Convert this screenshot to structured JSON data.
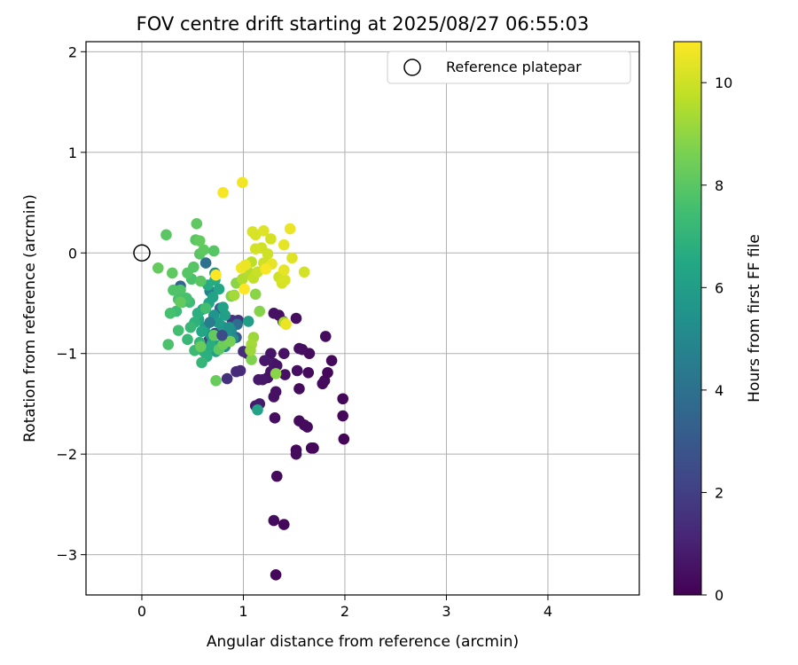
{
  "chart_data": {
    "type": "scatter",
    "title": "FOV centre drift starting at 2025/08/27 06:55:03",
    "xlabel": "Angular distance from reference (arcmin)",
    "ylabel": "Rotation from reference (arcmin)",
    "xlim": [
      -0.55,
      4.9
    ],
    "ylim": [
      -3.4,
      2.1
    ],
    "xticks": [
      0,
      1,
      2,
      3,
      4
    ],
    "yticks": [
      -3,
      -2,
      -1,
      0,
      1,
      2
    ],
    "grid": true,
    "legend": {
      "position": "top-right",
      "entries": [
        "Reference platepar"
      ]
    },
    "colorbar": {
      "label": "Hours from first FF file",
      "range": [
        0,
        10.8
      ],
      "ticks": [
        0,
        2,
        4,
        6,
        8,
        10
      ],
      "colormap": "viridis"
    },
    "reference_point": {
      "x": 0,
      "y": 0
    },
    "series": [
      {
        "points": [
          {
            "x": 1.32,
            "y": -3.2,
            "c": 0.2
          },
          {
            "x": 1.3,
            "y": -2.66,
            "c": 0.3
          },
          {
            "x": 1.4,
            "y": -2.7,
            "c": 0.2
          },
          {
            "x": 1.33,
            "y": -2.22,
            "c": 0.3
          },
          {
            "x": 1.52,
            "y": -1.96,
            "c": 0.2
          },
          {
            "x": 1.52,
            "y": -2.0,
            "c": 0.3
          },
          {
            "x": 1.67,
            "y": -1.94,
            "c": 0.2
          },
          {
            "x": 1.69,
            "y": -1.94,
            "c": 0.2
          },
          {
            "x": 1.99,
            "y": -1.85,
            "c": 0.1
          },
          {
            "x": 1.98,
            "y": -1.62,
            "c": 0.2
          },
          {
            "x": 1.98,
            "y": -1.45,
            "c": 0.2
          },
          {
            "x": 1.6,
            "y": -1.71,
            "c": 0.3
          },
          {
            "x": 1.63,
            "y": -1.73,
            "c": 0.3
          },
          {
            "x": 1.55,
            "y": -1.67,
            "c": 0.3
          },
          {
            "x": 1.31,
            "y": -1.64,
            "c": 0.4
          },
          {
            "x": 1.32,
            "y": -1.38,
            "c": 0.5
          },
          {
            "x": 1.3,
            "y": -1.43,
            "c": 0.5
          },
          {
            "x": 1.55,
            "y": -1.35,
            "c": 0.3
          },
          {
            "x": 1.78,
            "y": -1.3,
            "c": 0.3
          },
          {
            "x": 1.8,
            "y": -1.27,
            "c": 0.3
          },
          {
            "x": 1.83,
            "y": -1.19,
            "c": 0.2
          },
          {
            "x": 1.87,
            "y": -1.07,
            "c": 0.2
          },
          {
            "x": 1.81,
            "y": -0.83,
            "c": 0.3
          },
          {
            "x": 1.65,
            "y": -1.0,
            "c": 0.3
          },
          {
            "x": 1.58,
            "y": -0.96,
            "c": 0.4
          },
          {
            "x": 1.55,
            "y": -0.95,
            "c": 0.4
          },
          {
            "x": 1.64,
            "y": -1.19,
            "c": 0.3
          },
          {
            "x": 1.53,
            "y": -1.17,
            "c": 0.4
          },
          {
            "x": 1.41,
            "y": -1.21,
            "c": 0.5
          },
          {
            "x": 1.4,
            "y": -1.0,
            "c": 0.5
          },
          {
            "x": 1.27,
            "y": -1.0,
            "c": 0.6
          },
          {
            "x": 1.27,
            "y": -1.18,
            "c": 0.6
          },
          {
            "x": 1.24,
            "y": -1.24,
            "c": 0.6
          },
          {
            "x": 1.15,
            "y": -1.26,
            "c": 0.7
          },
          {
            "x": 1.19,
            "y": -1.26,
            "c": 0.7
          },
          {
            "x": 1.21,
            "y": -1.07,
            "c": 0.7
          },
          {
            "x": 1.3,
            "y": -1.1,
            "c": 0.7
          },
          {
            "x": 1.33,
            "y": -1.12,
            "c": 0.6
          },
          {
            "x": 1.12,
            "y": -1.52,
            "c": 0.8
          },
          {
            "x": 1.16,
            "y": -1.5,
            "c": 0.8
          },
          {
            "x": 1.04,
            "y": -1.0,
            "c": 0.9
          },
          {
            "x": 1.52,
            "y": -0.65,
            "c": 0.4
          },
          {
            "x": 1.3,
            "y": -0.6,
            "c": 0.5
          },
          {
            "x": 1.35,
            "y": -0.62,
            "c": 0.5
          },
          {
            "x": 1.39,
            "y": -0.68,
            "c": 0.6
          },
          {
            "x": 0.93,
            "y": -1.18,
            "c": 1.3
          },
          {
            "x": 0.97,
            "y": -1.17,
            "c": 1.3
          },
          {
            "x": 1.0,
            "y": -0.98,
            "c": 1.4
          },
          {
            "x": 0.84,
            "y": -1.25,
            "c": 1.5
          },
          {
            "x": 0.95,
            "y": -0.67,
            "c": 1.6
          },
          {
            "x": 0.89,
            "y": -0.67,
            "c": 1.7
          },
          {
            "x": 0.66,
            "y": -0.87,
            "c": 2.0
          },
          {
            "x": 0.72,
            "y": -0.8,
            "c": 2.0
          },
          {
            "x": 0.84,
            "y": -0.86,
            "c": 2.2
          },
          {
            "x": 0.38,
            "y": -0.33,
            "c": 3.5
          },
          {
            "x": 0.93,
            "y": -0.84,
            "c": 3.0
          },
          {
            "x": 0.77,
            "y": -0.55,
            "c": 3.5
          },
          {
            "x": 0.63,
            "y": -0.1,
            "c": 4.0
          },
          {
            "x": 0.94,
            "y": -0.71,
            "c": 3.8
          },
          {
            "x": 0.86,
            "y": -0.78,
            "c": 4.2
          },
          {
            "x": 0.67,
            "y": -0.38,
            "c": 4.8
          },
          {
            "x": 0.72,
            "y": -0.2,
            "c": 5.3
          },
          {
            "x": 0.88,
            "y": -0.77,
            "c": 5.0
          },
          {
            "x": 0.9,
            "y": -0.85,
            "c": 5.1
          },
          {
            "x": 0.82,
            "y": -0.93,
            "c": 5.3
          },
          {
            "x": 0.71,
            "y": -0.62,
            "c": 5.6
          },
          {
            "x": 0.68,
            "y": -0.82,
            "c": 5.7
          },
          {
            "x": 0.62,
            "y": -0.74,
            "c": 6.0
          },
          {
            "x": 0.75,
            "y": -0.69,
            "c": 5.9
          },
          {
            "x": 0.79,
            "y": -0.73,
            "c": 5.8
          },
          {
            "x": 0.84,
            "y": -0.81,
            "c": 5.5
          },
          {
            "x": 0.86,
            "y": -0.74,
            "c": 5.4
          },
          {
            "x": 0.76,
            "y": -0.92,
            "c": 5.9
          },
          {
            "x": 0.73,
            "y": -0.98,
            "c": 6.1
          },
          {
            "x": 0.69,
            "y": -0.9,
            "c": 6.3
          },
          {
            "x": 0.59,
            "y": -0.78,
            "c": 6.4
          },
          {
            "x": 0.56,
            "y": -0.66,
            "c": 6.5
          },
          {
            "x": 0.6,
            "y": -0.56,
            "c": 6.5
          },
          {
            "x": 0.66,
            "y": -0.5,
            "c": 6.4
          },
          {
            "x": 0.7,
            "y": -0.44,
            "c": 6.2
          },
          {
            "x": 0.65,
            "y": -0.32,
            "c": 6.6
          },
          {
            "x": 0.72,
            "y": -0.27,
            "c": 6.6
          },
          {
            "x": 0.76,
            "y": -0.36,
            "c": 6.4
          },
          {
            "x": 0.8,
            "y": -0.54,
            "c": 6.2
          },
          {
            "x": 0.82,
            "y": -0.62,
            "c": 6.1
          },
          {
            "x": 1.14,
            "y": -1.56,
            "c": 6.2
          },
          {
            "x": 1.05,
            "y": -0.68,
            "c": 6.0
          },
          {
            "x": 0.55,
            "y": -0.6,
            "c": 6.8
          },
          {
            "x": 0.52,
            "y": -0.69,
            "c": 6.9
          },
          {
            "x": 0.57,
            "y": -0.89,
            "c": 7.0
          },
          {
            "x": 0.61,
            "y": -0.98,
            "c": 6.9
          },
          {
            "x": 0.64,
            "y": -1.03,
            "c": 6.8
          },
          {
            "x": 0.68,
            "y": -0.93,
            "c": 6.7
          },
          {
            "x": 0.48,
            "y": -0.74,
            "c": 7.2
          },
          {
            "x": 0.45,
            "y": -0.86,
            "c": 7.2
          },
          {
            "x": 0.52,
            "y": -0.97,
            "c": 7.3
          },
          {
            "x": 0.59,
            "y": -1.09,
            "c": 7.1
          },
          {
            "x": 0.36,
            "y": -0.77,
            "c": 7.5
          },
          {
            "x": 0.34,
            "y": -0.58,
            "c": 7.4
          },
          {
            "x": 0.28,
            "y": -0.6,
            "c": 7.6
          },
          {
            "x": 0.26,
            "y": -0.91,
            "c": 7.7
          },
          {
            "x": 0.4,
            "y": -0.49,
            "c": 7.6
          },
          {
            "x": 0.47,
            "y": -0.49,
            "c": 7.4
          },
          {
            "x": 0.44,
            "y": -0.45,
            "c": 7.6
          },
          {
            "x": 0.38,
            "y": -0.37,
            "c": 7.8
          },
          {
            "x": 0.31,
            "y": -0.37,
            "c": 7.8
          },
          {
            "x": 0.36,
            "y": -0.46,
            "c": 7.7
          },
          {
            "x": 0.49,
            "y": -0.26,
            "c": 7.7
          },
          {
            "x": 0.45,
            "y": -0.2,
            "c": 7.9
          },
          {
            "x": 0.51,
            "y": -0.14,
            "c": 7.9
          },
          {
            "x": 0.57,
            "y": -0.01,
            "c": 8.0
          },
          {
            "x": 0.58,
            "y": -0.28,
            "c": 8.0
          },
          {
            "x": 0.61,
            "y": 0.03,
            "c": 8.1
          },
          {
            "x": 0.71,
            "y": 0.02,
            "c": 7.9
          },
          {
            "x": 0.53,
            "y": 0.13,
            "c": 8.0
          },
          {
            "x": 0.54,
            "y": 0.29,
            "c": 8.1
          },
          {
            "x": 0.57,
            "y": 0.12,
            "c": 8.2
          },
          {
            "x": 0.24,
            "y": 0.18,
            "c": 8.0
          },
          {
            "x": 0.16,
            "y": -0.15,
            "c": 8.2
          },
          {
            "x": 0.3,
            "y": -0.2,
            "c": 8.1
          },
          {
            "x": 0.38,
            "y": -0.49,
            "c": 8.2
          },
          {
            "x": 0.58,
            "y": -0.93,
            "c": 8.3
          },
          {
            "x": 0.71,
            "y": -0.82,
            "c": 8.2
          },
          {
            "x": 0.73,
            "y": -1.27,
            "c": 8.3
          },
          {
            "x": 0.76,
            "y": -0.96,
            "c": 8.1
          },
          {
            "x": 0.8,
            "y": -0.91,
            "c": 8.4
          },
          {
            "x": 0.87,
            "y": -0.88,
            "c": 8.5
          },
          {
            "x": 0.88,
            "y": -0.43,
            "c": 8.7
          },
          {
            "x": 0.93,
            "y": -0.3,
            "c": 8.9
          },
          {
            "x": 1.12,
            "y": -0.41,
            "c": 8.9
          },
          {
            "x": 1.16,
            "y": -0.58,
            "c": 8.8
          },
          {
            "x": 1.32,
            "y": -1.2,
            "c": 8.9
          },
          {
            "x": 1.08,
            "y": -1.06,
            "c": 8.7
          },
          {
            "x": 1.1,
            "y": -0.84,
            "c": 9.2
          },
          {
            "x": 1.08,
            "y": -0.91,
            "c": 9.3
          },
          {
            "x": 1.4,
            "y": -0.69,
            "c": 9.4
          },
          {
            "x": 1.07,
            "y": -0.97,
            "c": 9.2
          },
          {
            "x": 0.91,
            "y": -0.42,
            "c": 9.3
          },
          {
            "x": 0.99,
            "y": -0.26,
            "c": 9.5
          },
          {
            "x": 1.06,
            "y": -0.2,
            "c": 9.6
          },
          {
            "x": 1.08,
            "y": -0.09,
            "c": 9.7
          },
          {
            "x": 1.1,
            "y": -0.25,
            "c": 9.8
          },
          {
            "x": 1.14,
            "y": -0.19,
            "c": 9.9
          },
          {
            "x": 1.2,
            "y": -0.1,
            "c": 10.0
          },
          {
            "x": 1.18,
            "y": 0.05,
            "c": 10.0
          },
          {
            "x": 1.12,
            "y": 0.04,
            "c": 10.1
          },
          {
            "x": 1.09,
            "y": 0.21,
            "c": 10.2
          },
          {
            "x": 1.12,
            "y": 0.18,
            "c": 10.2
          },
          {
            "x": 1.2,
            "y": 0.22,
            "c": 10.3
          },
          {
            "x": 1.27,
            "y": 0.14,
            "c": 10.1
          },
          {
            "x": 1.24,
            "y": -0.01,
            "c": 10.0
          },
          {
            "x": 1.35,
            "y": -0.24,
            "c": 10.0
          },
          {
            "x": 1.38,
            "y": -0.3,
            "c": 10.1
          },
          {
            "x": 1.41,
            "y": -0.27,
            "c": 10.2
          },
          {
            "x": 1.4,
            "y": -0.17,
            "c": 10.4
          },
          {
            "x": 1.48,
            "y": -0.05,
            "c": 10.3
          },
          {
            "x": 1.4,
            "y": 0.08,
            "c": 10.4
          },
          {
            "x": 1.46,
            "y": 0.24,
            "c": 10.5
          },
          {
            "x": 1.6,
            "y": -0.19,
            "c": 10.1
          },
          {
            "x": 0.99,
            "y": 0.7,
            "c": 10.6
          },
          {
            "x": 0.8,
            "y": 0.6,
            "c": 10.7
          },
          {
            "x": 0.98,
            "y": -0.15,
            "c": 10.6
          },
          {
            "x": 1.02,
            "y": -0.12,
            "c": 10.5
          },
          {
            "x": 1.28,
            "y": -0.11,
            "c": 10.4
          },
          {
            "x": 1.22,
            "y": -0.16,
            "c": 10.7
          },
          {
            "x": 1.01,
            "y": -0.36,
            "c": 10.8
          },
          {
            "x": 1.42,
            "y": -0.71,
            "c": 10.5
          },
          {
            "x": 0.73,
            "y": -0.22,
            "c": 10.8
          },
          {
            "x": 0.63,
            "y": -0.55,
            "c": 7.5
          },
          {
            "x": 0.67,
            "y": -0.69,
            "c": 4.5
          },
          {
            "x": 0.79,
            "y": -0.82,
            "c": 2.5
          }
        ]
      }
    ]
  }
}
